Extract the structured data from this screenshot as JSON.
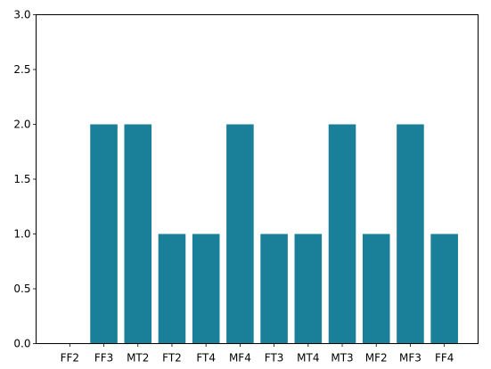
{
  "chart_data": {
    "type": "bar",
    "categories": [
      "FF2",
      "FF3",
      "MT2",
      "FT2",
      "FT4",
      "MF4",
      "FT3",
      "MT4",
      "MT3",
      "MF2",
      "MF3",
      "FF4"
    ],
    "values": [
      0,
      2,
      2,
      1,
      1,
      2,
      1,
      1,
      2,
      1,
      2,
      1
    ],
    "title": "",
    "xlabel": "",
    "ylabel": "",
    "ylim": [
      0,
      3
    ],
    "yticks": [
      0.0,
      0.5,
      1.0,
      1.5,
      2.0,
      2.5,
      3.0
    ],
    "ytick_labels": [
      "0.0",
      "0.5",
      "1.0",
      "1.5",
      "2.0",
      "2.5",
      "3.0"
    ],
    "grid": false,
    "bar_color": "#1a7f99"
  }
}
